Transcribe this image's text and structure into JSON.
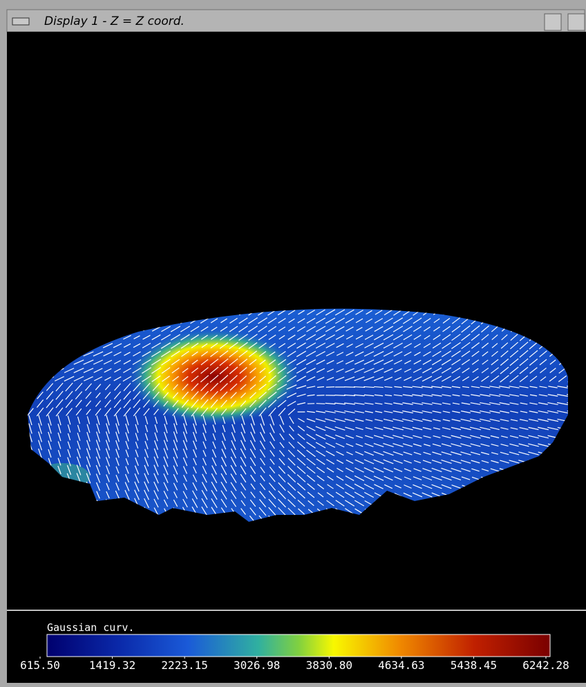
{
  "window": {
    "title": "Display 1 - Z = Z coord."
  },
  "colorbar": {
    "title": "Gaussian curv.",
    "ticks": [
      {
        "value": 615.5,
        "label": "615.50"
      },
      {
        "value": 1419.32,
        "label": "1419.32"
      },
      {
        "value": 2223.15,
        "label": "2223.15"
      },
      {
        "value": 3026.98,
        "label": "3026.98"
      },
      {
        "value": 3830.8,
        "label": "3830.80"
      },
      {
        "value": 4634.63,
        "label": "4634.63"
      },
      {
        "value": 5438.45,
        "label": "5438.45"
      },
      {
        "value": 6242.28,
        "label": "6242.28"
      }
    ]
  }
}
